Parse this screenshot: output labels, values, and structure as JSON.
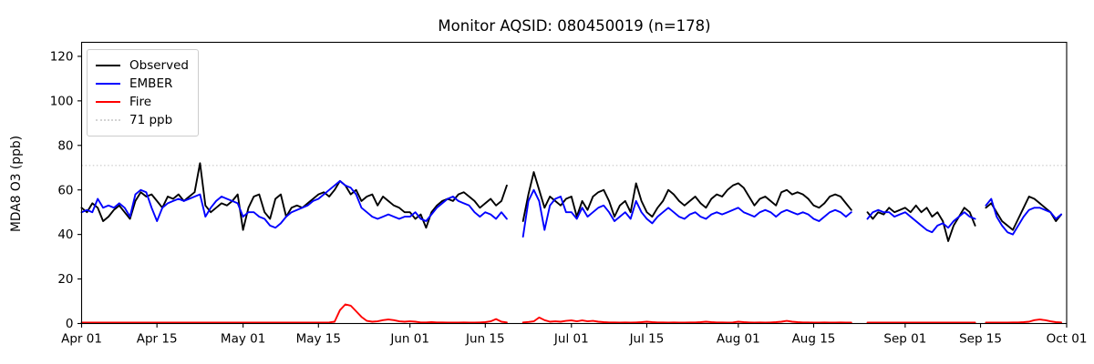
{
  "window": {
    "background": "#ffffff"
  },
  "legend": {
    "position": "upper left",
    "items": [
      {
        "label": "Observed",
        "color": "#000000",
        "dash": "solid"
      },
      {
        "label": "EMBER",
        "color": "#0000ff",
        "dash": "solid"
      },
      {
        "label": "Fire",
        "color": "#ff0000",
        "dash": "solid"
      },
      {
        "label": "71 ppb",
        "color": "#d3d3d3",
        "dash": "dotted"
      }
    ]
  },
  "chart_data": {
    "type": "line",
    "title": "Monitor AQSID: 080450019 (n=178)",
    "n_points": 178,
    "xlabel": "",
    "ylabel": "MDA8 O3 (ppb)",
    "x_tick_labels": [
      "Apr 01",
      "Apr 15",
      "May 01",
      "May 15",
      "Jun 01",
      "Jun 15",
      "Jul 01",
      "Jul 15",
      "Aug 01",
      "Aug 15",
      "Sep 01",
      "Sep 15",
      "Oct 01"
    ],
    "x_tick_days": [
      0,
      14,
      30,
      44,
      61,
      75,
      91,
      105,
      122,
      136,
      153,
      167,
      183
    ],
    "y_ticks": [
      0,
      20,
      40,
      60,
      80,
      100,
      120
    ],
    "ylim": [
      0,
      126.3
    ],
    "x_range_days": 183,
    "grid": false,
    "threshold": {
      "label": "71 ppb",
      "value": 71,
      "color": "#d3d3d3",
      "style": "dotted"
    },
    "series": [
      {
        "name": "Observed",
        "color": "#000000",
        "values": [
          52,
          50,
          54,
          52,
          46,
          48,
          51,
          53,
          50,
          47,
          55,
          59,
          57,
          58,
          55,
          52,
          57,
          56,
          58,
          55,
          57,
          59,
          72,
          53,
          50,
          52,
          54,
          53,
          55,
          58,
          42,
          52,
          57,
          58,
          50,
          47,
          56,
          58,
          48,
          52,
          53,
          52,
          54,
          56,
          58,
          59,
          57,
          60,
          64,
          62,
          58,
          60,
          55,
          57,
          58,
          53,
          57,
          55,
          53,
          52,
          50,
          50,
          47,
          49,
          43,
          50,
          53,
          55,
          56,
          55,
          58,
          59,
          57,
          55,
          52,
          54,
          56,
          53,
          55,
          62,
          null,
          null,
          46,
          58,
          68,
          60,
          52,
          57,
          55,
          53,
          56,
          57,
          48,
          55,
          51,
          57,
          59,
          60,
          55,
          48,
          53,
          55,
          50,
          63,
          55,
          50,
          48,
          52,
          55,
          60,
          58,
          55,
          53,
          55,
          57,
          54,
          52,
          56,
          58,
          57,
          60,
          62,
          63,
          61,
          57,
          53,
          56,
          57,
          55,
          53,
          59,
          60,
          58,
          59,
          58,
          56,
          53,
          52,
          54,
          57,
          58,
          57,
          54,
          51,
          null,
          null,
          50,
          47,
          50,
          49,
          52,
          50,
          51,
          52,
          50,
          53,
          50,
          52,
          48,
          50,
          46,
          37,
          44,
          48,
          52,
          50,
          44,
          null,
          52,
          54,
          50,
          46,
          44,
          42,
          47,
          52,
          57,
          56,
          54,
          52,
          50,
          46,
          49
        ]
      },
      {
        "name": "EMBER",
        "color": "#0000ff",
        "values": [
          50,
          51,
          50,
          56,
          52,
          53,
          52,
          54,
          52,
          48,
          58,
          60,
          59,
          52,
          46,
          52,
          54,
          55,
          56,
          55,
          56,
          57,
          58,
          48,
          52,
          55,
          57,
          56,
          55,
          54,
          48,
          50,
          50,
          48,
          47,
          44,
          43,
          45,
          48,
          50,
          51,
          52,
          53,
          55,
          56,
          58,
          60,
          62,
          64,
          62,
          61,
          58,
          52,
          50,
          48,
          47,
          48,
          49,
          48,
          47,
          48,
          48,
          50,
          47,
          46,
          49,
          52,
          54,
          56,
          57,
          55,
          54,
          53,
          50,
          48,
          50,
          49,
          47,
          50,
          47,
          null,
          null,
          39,
          55,
          60,
          55,
          42,
          53,
          56,
          57,
          50,
          50,
          47,
          52,
          48,
          50,
          52,
          53,
          50,
          46,
          48,
          50,
          47,
          55,
          50,
          47,
          45,
          48,
          50,
          52,
          50,
          48,
          47,
          49,
          50,
          48,
          47,
          49,
          50,
          49,
          50,
          51,
          52,
          50,
          49,
          48,
          50,
          51,
          50,
          48,
          50,
          51,
          50,
          49,
          50,
          49,
          47,
          46,
          48,
          50,
          51,
          50,
          48,
          50,
          null,
          null,
          47,
          50,
          51,
          50,
          50,
          48,
          49,
          50,
          48,
          46,
          44,
          42,
          41,
          44,
          45,
          43,
          46,
          48,
          50,
          48,
          47,
          null,
          53,
          56,
          48,
          44,
          41,
          40,
          44,
          48,
          51,
          52,
          52,
          51,
          50,
          47,
          49
        ]
      },
      {
        "name": "Fire",
        "color": "#ff0000",
        "values": [
          0.4,
          0.4,
          0.4,
          0.4,
          0.4,
          0.4,
          0.4,
          0.4,
          0.4,
          0.4,
          0.4,
          0.4,
          0.4,
          0.4,
          0.4,
          0.4,
          0.4,
          0.4,
          0.4,
          0.4,
          0.4,
          0.4,
          0.4,
          0.4,
          0.4,
          0.4,
          0.4,
          0.4,
          0.4,
          0.4,
          0.4,
          0.4,
          0.4,
          0.4,
          0.4,
          0.4,
          0.4,
          0.4,
          0.4,
          0.4,
          0.4,
          0.4,
          0.4,
          0.4,
          0.4,
          0.4,
          0.5,
          0.8,
          6,
          8.6,
          8,
          5.5,
          3,
          1.2,
          0.8,
          1,
          1.5,
          1.8,
          1.5,
          1,
          0.8,
          1,
          0.8,
          0.5,
          0.5,
          0.6,
          0.5,
          0.5,
          0.4,
          0.4,
          0.4,
          0.5,
          0.4,
          0.4,
          0.5,
          0.6,
          1,
          2,
          0.8,
          0.5,
          null,
          null,
          0.5,
          0.7,
          1,
          2.7,
          1.5,
          0.8,
          1,
          0.8,
          1.2,
          1.4,
          1,
          1.4,
          1,
          1.2,
          0.8,
          0.6,
          0.5,
          0.5,
          0.4,
          0.5,
          0.4,
          0.5,
          0.6,
          0.8,
          0.6,
          0.5,
          0.5,
          0.4,
          0.5,
          0.4,
          0.4,
          0.5,
          0.5,
          0.6,
          0.8,
          0.6,
          0.5,
          0.5,
          0.4,
          0.5,
          0.8,
          0.6,
          0.5,
          0.4,
          0.5,
          0.4,
          0.5,
          0.6,
          0.8,
          1.2,
          0.8,
          0.6,
          0.5,
          0.5,
          0.4,
          0.4,
          0.5,
          0.4,
          0.4,
          0.5,
          0.4,
          0.4,
          null,
          null,
          0.4,
          0.4,
          0.4,
          0.4,
          0.4,
          0.4,
          0.4,
          0.4,
          0.4,
          0.4,
          0.4,
          0.4,
          0.4,
          0.4,
          0.4,
          0.4,
          0.4,
          0.4,
          0.4,
          0.4,
          0.4,
          null,
          0.4,
          0.4,
          0.4,
          0.4,
          0.4,
          0.5,
          0.5,
          0.6,
          0.8,
          1.5,
          1.8,
          1.5,
          1,
          0.6,
          0.5
        ]
      }
    ]
  }
}
